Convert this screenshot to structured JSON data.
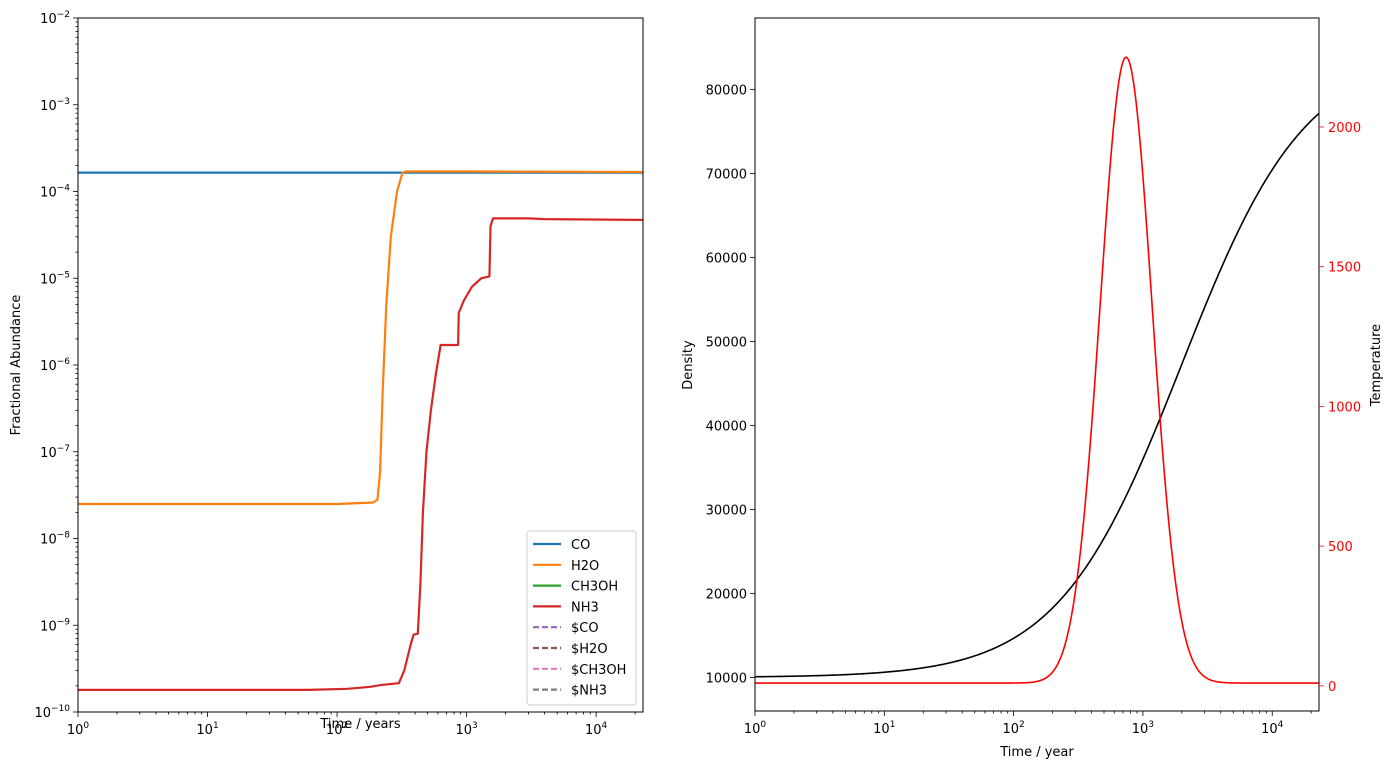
{
  "chart_data": [
    {
      "type": "line",
      "xscale": "log",
      "yscale": "log",
      "xlabel": "Time / years",
      "ylabel": "Fractional Abundance",
      "xlim": [
        1,
        23000
      ],
      "ylim": [
        1e-10,
        0.01
      ],
      "xticks": [
        {
          "value": 1,
          "base": "10",
          "exp": "0"
        },
        {
          "value": 10,
          "base": "10",
          "exp": "1"
        },
        {
          "value": 100,
          "base": "10",
          "exp": "2"
        },
        {
          "value": 1000,
          "base": "10",
          "exp": "3"
        },
        {
          "value": 10000,
          "base": "10",
          "exp": "4"
        }
      ],
      "yticks": [
        {
          "value": 1e-10,
          "base": "10",
          "exp": "−10"
        },
        {
          "value": 1e-09,
          "base": "10",
          "exp": "−9"
        },
        {
          "value": 1e-08,
          "base": "10",
          "exp": "−8"
        },
        {
          "value": 1e-07,
          "base": "10",
          "exp": "−7"
        },
        {
          "value": 1e-06,
          "base": "10",
          "exp": "−6"
        },
        {
          "value": 1e-05,
          "base": "10",
          "exp": "−5"
        },
        {
          "value": 0.0001,
          "base": "10",
          "exp": "−4"
        },
        {
          "value": 0.001,
          "base": "10",
          "exp": "−3"
        },
        {
          "value": 0.01,
          "base": "10",
          "exp": "−2"
        }
      ],
      "legend_position": "lower-right",
      "series": [
        {
          "name": "CO",
          "color": "#1f77b4",
          "dashed": false,
          "points": [
            [
              1,
              0.000165
            ],
            [
              23000,
              0.000165
            ]
          ]
        },
        {
          "name": "H2O",
          "color": "#ff7f0e",
          "dashed": false,
          "points": [
            [
              1,
              2.5e-08
            ],
            [
              100,
              2.5e-08
            ],
            [
              190,
              2.6e-08
            ],
            [
              205,
              2.8e-08
            ],
            [
              215,
              6e-08
            ],
            [
              225,
              5e-07
            ],
            [
              240,
              5e-06
            ],
            [
              260,
              3e-05
            ],
            [
              290,
              0.0001
            ],
            [
              320,
              0.000165
            ],
            [
              340,
              0.00017
            ],
            [
              1000,
              0.00017
            ],
            [
              23000,
              0.000168
            ]
          ]
        },
        {
          "name": "CH3OH",
          "color": "#2ca02c",
          "dashed": false,
          "points": []
        },
        {
          "name": "NH3",
          "color": "#d62728",
          "dashed": false,
          "points": [
            [
              1,
              1.8e-10
            ],
            [
              60,
              1.8e-10
            ],
            [
              120,
              1.85e-10
            ],
            [
              180,
              1.95e-10
            ],
            [
              220,
              2.05e-10
            ],
            [
              300,
              2.15e-10
            ],
            [
              330,
              3e-10
            ],
            [
              370,
              6e-10
            ],
            [
              390,
              7.8e-10
            ],
            [
              420,
              8e-10
            ],
            [
              440,
              3e-09
            ],
            [
              460,
              2e-08
            ],
            [
              490,
              1e-07
            ],
            [
              530,
              3e-07
            ],
            [
              580,
              8e-07
            ],
            [
              630,
              1.7e-06
            ],
            [
              860,
              1.7e-06
            ],
            [
              870,
              4e-06
            ],
            [
              950,
              5.5e-06
            ],
            [
              1100,
              8e-06
            ],
            [
              1300,
              1e-05
            ],
            [
              1500,
              1.05e-05
            ],
            [
              1530,
              4e-05
            ],
            [
              1600,
              4.9e-05
            ],
            [
              3000,
              4.9e-05
            ],
            [
              4000,
              4.8e-05
            ],
            [
              23000,
              4.7e-05
            ]
          ]
        },
        {
          "name": "$CO",
          "color": "#9467bd",
          "dashed": true,
          "points": []
        },
        {
          "name": "$H2O",
          "color": "#8c564b",
          "dashed": true,
          "points": []
        },
        {
          "name": "$CH3OH",
          "color": "#e377c2",
          "dashed": true,
          "points": []
        },
        {
          "name": "$NH3",
          "color": "#7f7f7f",
          "dashed": true,
          "points": []
        }
      ]
    },
    {
      "type": "line",
      "xscale": "log",
      "xlabel": "Time / year",
      "ylabel": "Density",
      "y2label": "Temperature",
      "xlim": [
        1,
        23000
      ],
      "ylim": [
        6000,
        88500
      ],
      "y2lim": [
        -90,
        2390
      ],
      "xticks": [
        {
          "value": 1,
          "base": "10",
          "exp": "0"
        },
        {
          "value": 10,
          "base": "10",
          "exp": "1"
        },
        {
          "value": 100,
          "base": "10",
          "exp": "2"
        },
        {
          "value": 1000,
          "base": "10",
          "exp": "3"
        },
        {
          "value": 10000,
          "base": "10",
          "exp": "4"
        }
      ],
      "yticks": [
        "10000",
        "20000",
        "30000",
        "40000",
        "50000",
        "60000",
        "70000",
        "80000"
      ],
      "y2ticks": [
        "0",
        "500",
        "1000",
        "1500",
        "2000"
      ],
      "series": [
        {
          "name": "Density",
          "axis": "left",
          "color": "#000000",
          "model": {
            "kind": "sigmoid",
            "base": 10000,
            "amp": 74500,
            "center_log": 3.3,
            "width": 0.48
          }
        },
        {
          "name": "Temperature",
          "axis": "right",
          "color": "#ff0000",
          "model": {
            "kind": "gaussian",
            "base": 10,
            "amp": 2240,
            "center_log": 2.87,
            "sigma": 0.2
          }
        }
      ]
    }
  ]
}
